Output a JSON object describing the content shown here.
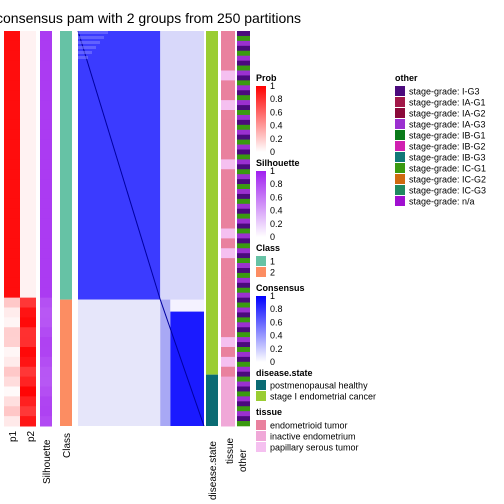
{
  "chart_data": {
    "type": "heatmap",
    "title": "consensus pam with 2 groups from 250 partitions",
    "column_labels": [
      "p1",
      "p2",
      "Silhouette",
      "Class"
    ],
    "annotation_labels": [
      "disease.state",
      "tissue",
      "other"
    ],
    "group_split": {
      "group1_fraction": 0.68,
      "group2_fraction": 0.32
    },
    "legends": {
      "prob": {
        "title": "Prob",
        "ticks": [
          "1",
          "0.8",
          "0.6",
          "0.4",
          "0.2",
          "0"
        ],
        "color_high": "#ff0000",
        "color_low": "#ffffff"
      },
      "silhouette": {
        "title": "Silhouette",
        "ticks": [
          "1",
          "0.8",
          "0.6",
          "0.4",
          "0.2",
          "0"
        ],
        "color_high": "#a020f0",
        "color_low": "#ffffff"
      },
      "class": {
        "title": "Class",
        "items": [
          {
            "label": "1",
            "color": "#66c2a5"
          },
          {
            "label": "2",
            "color": "#fc8d62"
          }
        ]
      },
      "consensus": {
        "title": "Consensus",
        "ticks": [
          "1",
          "0.8",
          "0.6",
          "0.4",
          "0.2",
          "0"
        ],
        "color_high": "#0000ff",
        "color_low": "#ffffff"
      },
      "disease_state": {
        "title": "disease.state",
        "items": [
          {
            "label": "postmenopausal healthy",
            "color": "#0a6b73"
          },
          {
            "label": "stage I endometrial cancer",
            "color": "#9acd32"
          }
        ]
      },
      "tissue": {
        "title": "tissue",
        "items": [
          {
            "label": "endometrioid tumor",
            "color": "#e9819e"
          },
          {
            "label": "inactive endometrium",
            "color": "#f0a8d8"
          },
          {
            "label": "papillary serous tumor",
            "color": "#f5c0f0"
          }
        ]
      },
      "other": {
        "title": "other",
        "items": [
          {
            "label": "stage-grade: I-G3",
            "color": "#4b0a7d"
          },
          {
            "label": "stage-grade: IA-G1",
            "color": "#a21848"
          },
          {
            "label": "stage-grade: IA-G2",
            "color": "#8b0a3a"
          },
          {
            "label": "stage-grade: IA-G3",
            "color": "#9b30d0"
          },
          {
            "label": "stage-grade: IB-G1",
            "color": "#0a7a1a"
          },
          {
            "label": "stage-grade: IB-G2",
            "color": "#d020b0"
          },
          {
            "label": "stage-grade: IB-G3",
            "color": "#107878"
          },
          {
            "label": "stage-grade: IC-G1",
            "color": "#3a9a10"
          },
          {
            "label": "stage-grade: IC-G2",
            "color": "#d06a10"
          },
          {
            "label": "stage-grade: IC-G3",
            "color": "#208a60"
          },
          {
            "label": "stage-grade: n/a",
            "color": "#a010d0"
          }
        ]
      }
    }
  }
}
